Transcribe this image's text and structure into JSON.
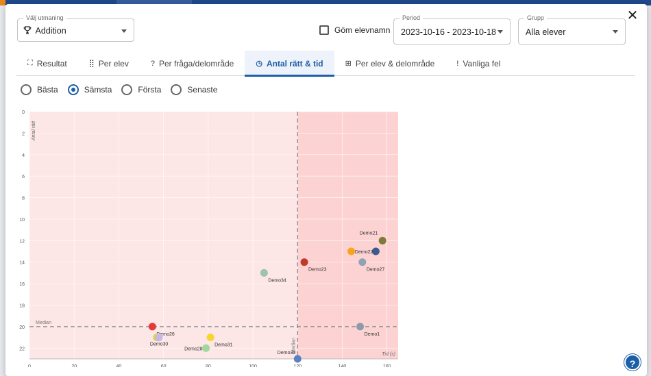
{
  "challenge": {
    "label": "Välj utmaning",
    "value": "Addition",
    "icon": "trophy-icon"
  },
  "hide_names": {
    "label": "Göm elevnamn",
    "checked": false
  },
  "period": {
    "label": "Period",
    "value": "2023-10-16 - 2023-10-18"
  },
  "group": {
    "label": "Grupp",
    "value": "Alla elever"
  },
  "tabs": [
    {
      "label": "Resultat",
      "icon": "binoculars-icon",
      "glyph": "⛶"
    },
    {
      "label": "Per elev",
      "icon": "grid-icon",
      "glyph": "⣿"
    },
    {
      "label": "Per fråga/delområde",
      "icon": "question-icon",
      "glyph": "?"
    },
    {
      "label": "Antal rätt & tid",
      "icon": "clock-icon",
      "glyph": "◷",
      "active": true
    },
    {
      "label": "Per elev & delområde",
      "icon": "table-icon",
      "glyph": "⊞"
    },
    {
      "label": "Vanliga fel",
      "icon": "exclamation-icon",
      "glyph": "!"
    }
  ],
  "radios": [
    {
      "label": "Bästa",
      "selected": false
    },
    {
      "label": "Sämsta",
      "selected": true
    },
    {
      "label": "Första",
      "selected": false
    },
    {
      "label": "Senaste",
      "selected": false
    }
  ],
  "chart_data": {
    "type": "scatter",
    "xlabel": "Tid (s)",
    "ylabel": "Antal rätt",
    "xlim": [
      0,
      165
    ],
    "ylim": [
      0,
      23
    ],
    "y_inverted": true,
    "x_ticks": [
      0,
      20,
      40,
      60,
      80,
      100,
      120,
      140,
      160
    ],
    "y_ticks": [
      0,
      2,
      4,
      6,
      8,
      10,
      12,
      14,
      16,
      18,
      20,
      22
    ],
    "median_x": 120,
    "median_y": 20,
    "median_label": "Median",
    "colors": {
      "left_region": "#fde6e6",
      "right_region": "#fcd2d2",
      "median_line": "#8a8a8a"
    },
    "points": [
      {
        "x": 158,
        "y": 12,
        "label": "Demo21",
        "color": "#7f7a3a"
      },
      {
        "x": 144,
        "y": 13,
        "label": "",
        "color": "#f7a51c"
      },
      {
        "x": 155,
        "y": 13,
        "label": "Demo22",
        "color": "#3d5a8f"
      },
      {
        "x": 123,
        "y": 14,
        "label": "Demo23",
        "color": "#c0392b"
      },
      {
        "x": 149,
        "y": 14,
        "label": "Demo27",
        "color": "#8fa3b5"
      },
      {
        "x": 105,
        "y": 15,
        "label": "Demo34",
        "color": "#9bc4ab"
      },
      {
        "x": 148,
        "y": 20,
        "label": "Demo1",
        "color": "#8e9aa8"
      },
      {
        "x": 55,
        "y": 20,
        "label": "Demo26",
        "color": "#e53935"
      },
      {
        "x": 57,
        "y": 21,
        "label": "Demo30",
        "color": "#d9d24a"
      },
      {
        "x": 58,
        "y": 21,
        "label": "",
        "color": "#c8b8e8"
      },
      {
        "x": 81,
        "y": 21,
        "label": "Demo31",
        "color": "#f5d630"
      },
      {
        "x": 79,
        "y": 22,
        "label": "Demo28",
        "color": "#9fd79f"
      },
      {
        "x": 120,
        "y": 23,
        "label": "Demo33",
        "color": "#5b7fc4"
      }
    ]
  }
}
